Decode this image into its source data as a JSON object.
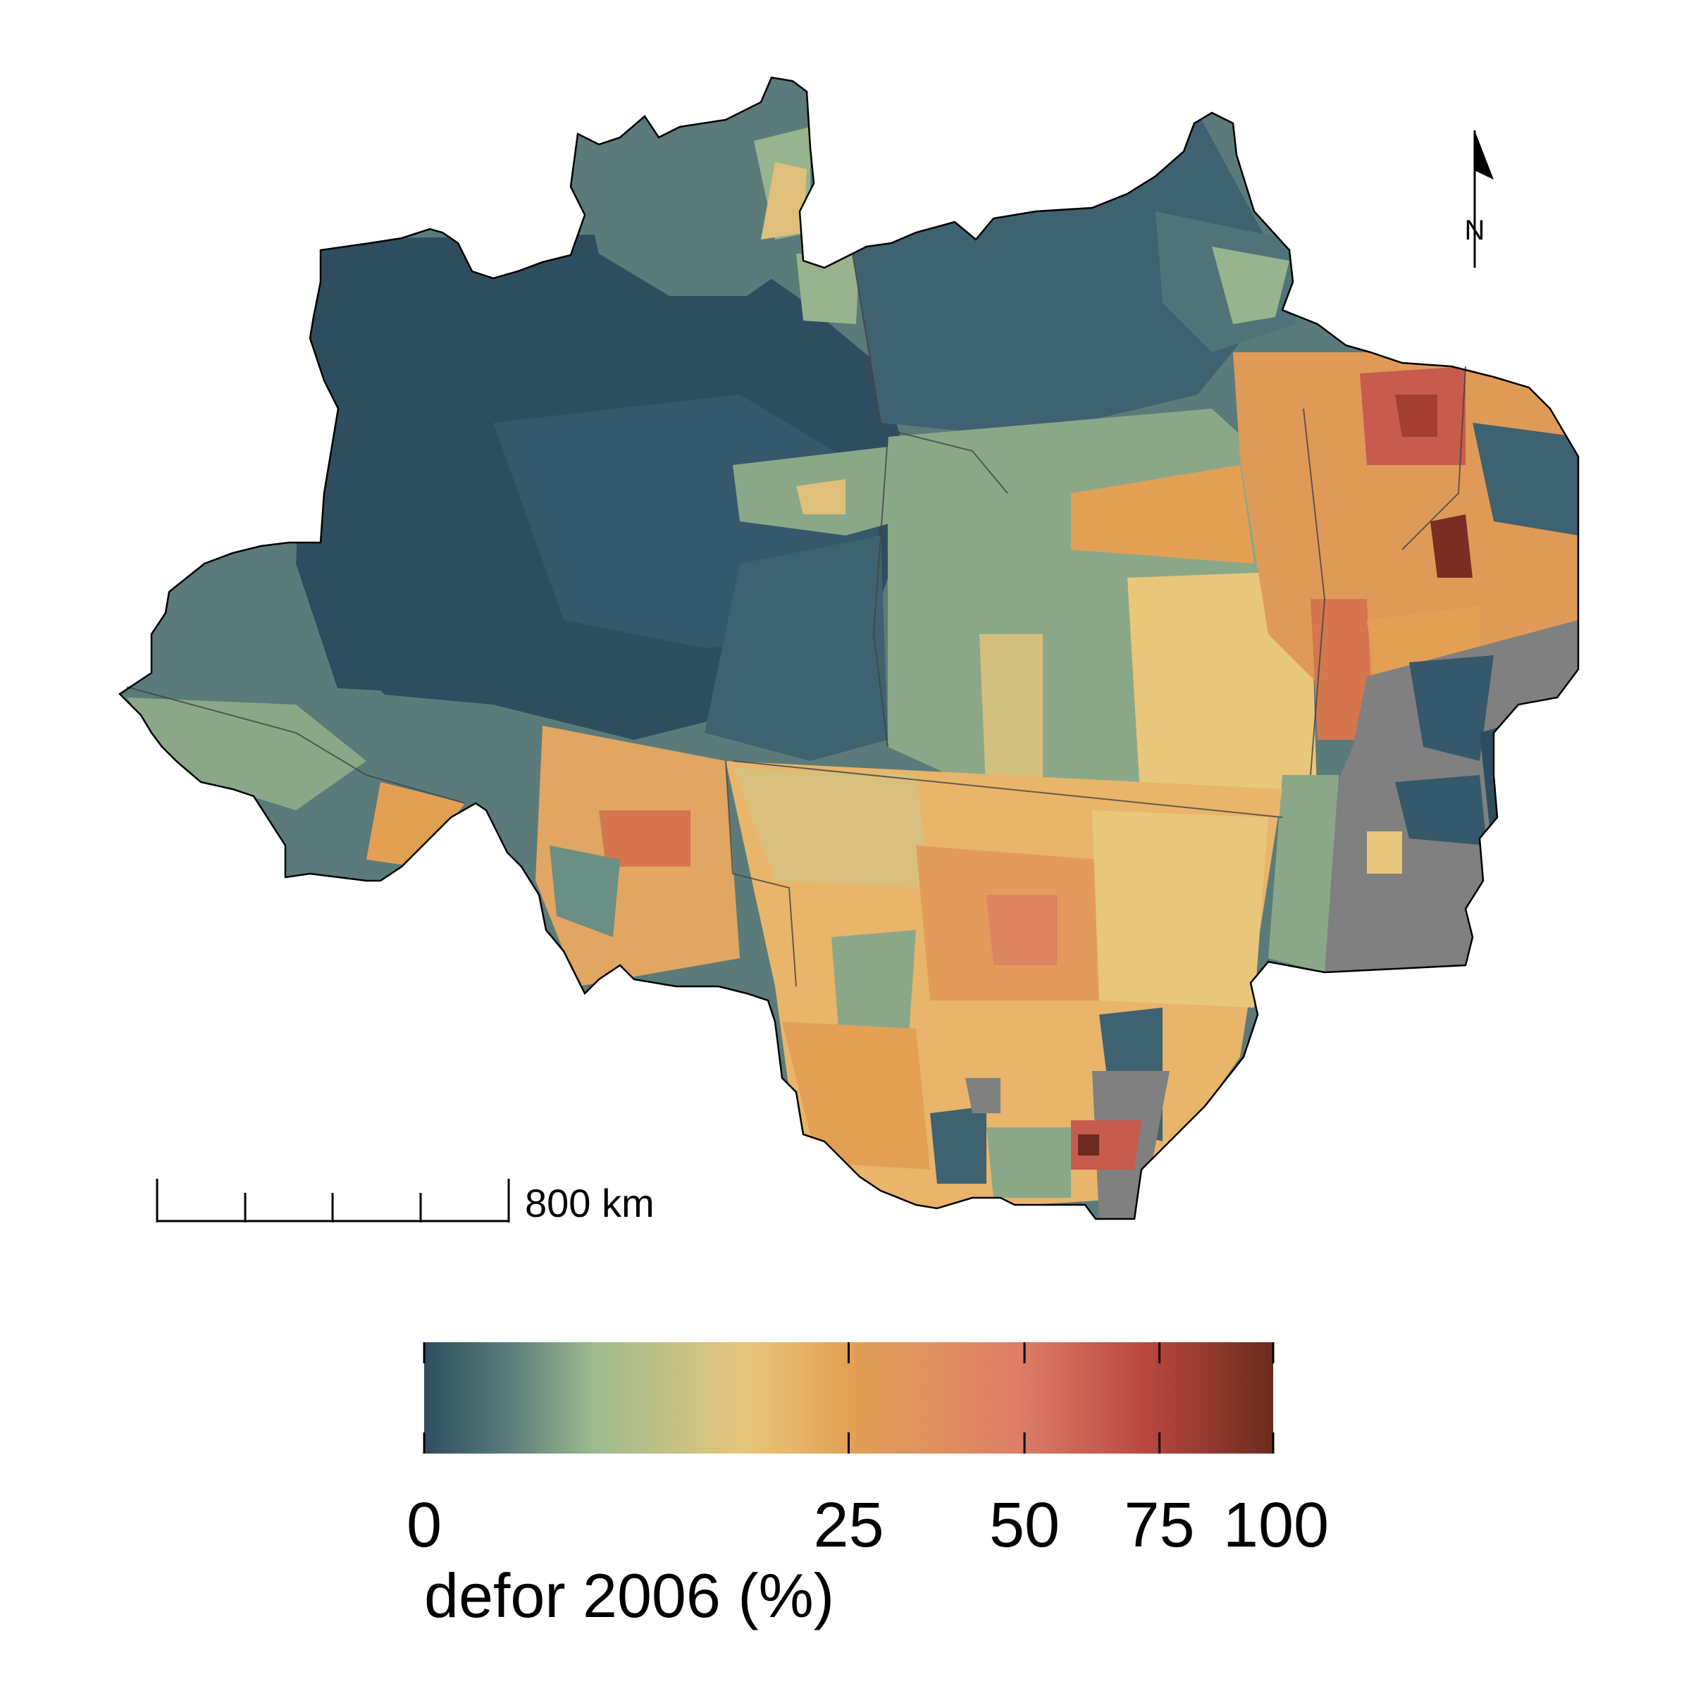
{
  "map": {
    "legend": {
      "title": "defor 2006 (%)",
      "ticks": [
        "0",
        "25",
        "50",
        "75",
        "100"
      ],
      "tick_values": [
        0,
        25,
        50,
        75,
        100
      ],
      "scale": "non-linear (square-root-like)",
      "colors": [
        "#2e4e5f",
        "#5b7b7a",
        "#9dbb8e",
        "#e8c67a",
        "#e3a055",
        "#dd7e68",
        "#b9473f",
        "#6b2b1e"
      ],
      "nodata_color": "#808080"
    },
    "scalebar": {
      "label": "800 km",
      "segments": 4
    },
    "north_arrow": {
      "label": "N"
    },
    "palette": {
      "low": "#2e4e5f",
      "mid_low": "#8ba78a",
      "mid": "#e8c67a",
      "mid_high": "#e3944f",
      "high": "#c75b4d",
      "max": "#6b2b1e",
      "no_data": "#808080"
    }
  }
}
